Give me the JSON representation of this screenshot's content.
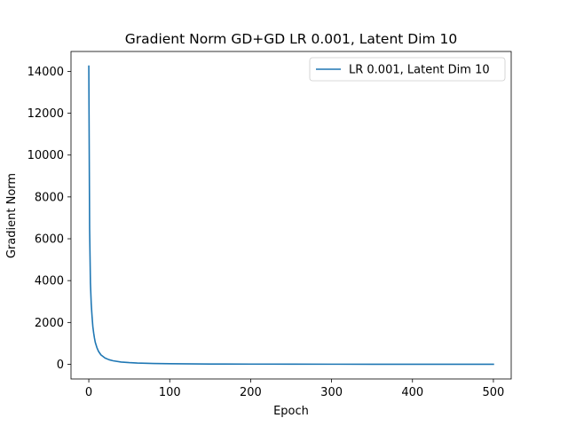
{
  "chart_data": {
    "type": "line",
    "title": "Gradient Norm GD+GD LR 0.001, Latent Dim 10",
    "xlabel": "Epoch",
    "ylabel": "Gradient Norm",
    "xlim": [
      -22,
      522
    ],
    "ylim": [
      -700,
      14950
    ],
    "xticks": [
      0,
      100,
      200,
      300,
      400,
      500
    ],
    "xtick_labels": [
      "0",
      "100",
      "200",
      "300",
      "400",
      "500"
    ],
    "yticks": [
      0,
      2000,
      4000,
      6000,
      8000,
      10000,
      12000,
      14000
    ],
    "ytick_labels": [
      "0",
      "2000",
      "4000",
      "6000",
      "8000",
      "10000",
      "12000",
      "14000"
    ],
    "grid": false,
    "legend_position": "top-right",
    "series": [
      {
        "name": "LR 0.001, Latent Dim 10",
        "color": "#1f77b4",
        "x": [
          0,
          1,
          2,
          3,
          4,
          5,
          6,
          7,
          8,
          10,
          12,
          15,
          20,
          25,
          30,
          40,
          50,
          60,
          80,
          100,
          150,
          200,
          250,
          300,
          350,
          400,
          450,
          500
        ],
        "y": [
          14250,
          6500,
          3900,
          2900,
          2300,
          1800,
          1500,
          1250,
          1050,
          800,
          620,
          450,
          300,
          220,
          170,
          110,
          80,
          60,
          40,
          30,
          15,
          10,
          7,
          5,
          4,
          3,
          2,
          2
        ]
      }
    ]
  }
}
